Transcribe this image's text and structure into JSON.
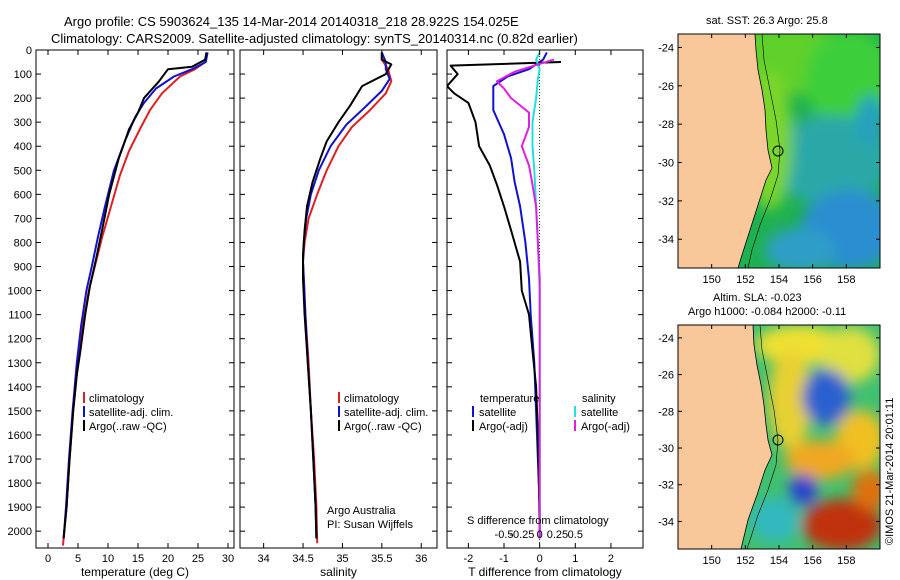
{
  "header": {
    "line1": "Argo profile: CS 5903624_135 14-Mar-2014 20140318_218 28.922S 154.025E",
    "line2": "Climatology: CARS2009. Satellite-adjusted climatology: synTS_20140314.nc (0.82d earlier)"
  },
  "colors": {
    "climatology": "#e02020",
    "satellite": "#1010d0",
    "argo": "#000000",
    "sat_salinity": "#20e0e0",
    "argo_salinity": "#e020e0",
    "land": "#f8c89a"
  },
  "chart_data": [
    {
      "type": "line",
      "name": "temperature-profile",
      "xlabel": "temperature (deg C)",
      "xlim": [
        -2,
        31
      ],
      "ylim": [
        0,
        2070
      ],
      "y_reversed": true,
      "xticks": [
        0,
        5,
        10,
        15,
        20,
        25,
        30
      ],
      "yticks": [
        0,
        100,
        200,
        300,
        400,
        500,
        600,
        700,
        800,
        900,
        1000,
        1100,
        1200,
        1300,
        1400,
        1500,
        1600,
        1700,
        1800,
        1900,
        2000
      ],
      "legend": [
        "climatology",
        "satellite-adj. clim.",
        "Argo(..raw -QC)"
      ],
      "series": [
        {
          "name": "climatology",
          "color": "#e02020",
          "points": [
            [
              26.5,
              10
            ],
            [
              26.2,
              50
            ],
            [
              24.5,
              80
            ],
            [
              22,
              110
            ],
            [
              19,
              180
            ],
            [
              17,
              250
            ],
            [
              15.5,
              320
            ],
            [
              13.5,
              420
            ],
            [
              12,
              520
            ],
            [
              10.5,
              650
            ],
            [
              9,
              780
            ],
            [
              7.8,
              900
            ],
            [
              6.8,
              1000
            ],
            [
              5.8,
              1150
            ],
            [
              5,
              1300
            ],
            [
              4.2,
              1500
            ],
            [
              3.6,
              1700
            ],
            [
              3.1,
              1900
            ],
            [
              2.6,
              2030
            ],
            [
              2.5,
              2060
            ]
          ]
        },
        {
          "name": "satellite-adj. clim.",
          "color": "#1010d0",
          "points": [
            [
              26.6,
              10
            ],
            [
              26.3,
              50
            ],
            [
              24,
              80
            ],
            [
              21,
              110
            ],
            [
              18,
              160
            ],
            [
              16,
              220
            ],
            [
              14.5,
              280
            ],
            [
              12.8,
              380
            ],
            [
              11,
              500
            ],
            [
              9.5,
              650
            ],
            [
              8.3,
              780
            ],
            [
              7.3,
              900
            ],
            [
              6.4,
              1000
            ],
            [
              5.5,
              1150
            ],
            [
              4.8,
              1300
            ],
            [
              4.1,
              1500
            ],
            [
              3.5,
              1700
            ],
            [
              3,
              1900
            ],
            [
              2.6,
              2030
            ]
          ]
        },
        {
          "name": "Argo(..raw -QC)",
          "color": "#000000",
          "points": [
            [
              26.4,
              10
            ],
            [
              26.2,
              40
            ],
            [
              24,
              70
            ],
            [
              20,
              80
            ],
            [
              18.5,
              130
            ],
            [
              16,
              200
            ],
            [
              15,
              260
            ],
            [
              13.5,
              330
            ],
            [
              11.8,
              450
            ],
            [
              10.2,
              600
            ],
            [
              9,
              750
            ],
            [
              8,
              870
            ],
            [
              7,
              980
            ],
            [
              6.2,
              1100
            ],
            [
              5.4,
              1250
            ],
            [
              4.8,
              1350
            ],
            [
              4.2,
              1500
            ],
            [
              3.6,
              1700
            ],
            [
              3.1,
              1900
            ],
            [
              2.6,
              2030
            ]
          ]
        }
      ]
    },
    {
      "type": "line",
      "name": "salinity-profile",
      "xlabel": "salinity",
      "xlim": [
        33.7,
        36.2
      ],
      "ylim": [
        0,
        2070
      ],
      "y_reversed": true,
      "xticks": [
        34,
        34.5,
        35,
        35.5,
        36
      ],
      "legend": [
        "climatology",
        "satellite-adj. clim.",
        "Argo(..raw -QC)"
      ],
      "annotation": [
        "Argo Australia",
        "PI: Susan Wijffels"
      ],
      "series": [
        {
          "name": "climatology",
          "color": "#e02020",
          "points": [
            [
              35.5,
              10
            ],
            [
              35.5,
              40
            ],
            [
              35.58,
              80
            ],
            [
              35.62,
              130
            ],
            [
              35.55,
              180
            ],
            [
              35.35,
              250
            ],
            [
              35.12,
              320
            ],
            [
              34.95,
              400
            ],
            [
              34.8,
              500
            ],
            [
              34.68,
              600
            ],
            [
              34.57,
              700
            ],
            [
              34.52,
              800
            ],
            [
              34.5,
              880
            ],
            [
              34.51,
              950
            ],
            [
              34.53,
              1100
            ],
            [
              34.57,
              1300
            ],
            [
              34.6,
              1500
            ],
            [
              34.64,
              1700
            ],
            [
              34.67,
              1900
            ],
            [
              34.68,
              2050
            ]
          ]
        },
        {
          "name": "satellite-adj. clim.",
          "color": "#1010d0",
          "points": [
            [
              35.5,
              10
            ],
            [
              35.55,
              50
            ],
            [
              35.55,
              80
            ],
            [
              35.6,
              120
            ],
            [
              35.5,
              170
            ],
            [
              35.28,
              240
            ],
            [
              35.05,
              310
            ],
            [
              34.85,
              400
            ],
            [
              34.7,
              500
            ],
            [
              34.6,
              600
            ],
            [
              34.54,
              700
            ],
            [
              34.51,
              800
            ],
            [
              34.5,
              880
            ],
            [
              34.51,
              950
            ],
            [
              34.53,
              1100
            ],
            [
              34.56,
              1300
            ],
            [
              34.6,
              1500
            ],
            [
              34.63,
              1700
            ],
            [
              34.66,
              1900
            ],
            [
              34.67,
              2030
            ]
          ]
        },
        {
          "name": "Argo(..raw -QC)",
          "color": "#000000",
          "points": [
            [
              35.5,
              10
            ],
            [
              35.5,
              40
            ],
            [
              35.62,
              60
            ],
            [
              35.55,
              100
            ],
            [
              35.25,
              150
            ],
            [
              35.1,
              230
            ],
            [
              34.95,
              300
            ],
            [
              34.8,
              380
            ],
            [
              34.72,
              450
            ],
            [
              34.62,
              550
            ],
            [
              34.55,
              650
            ],
            [
              34.52,
              750
            ],
            [
              34.5,
              850
            ],
            [
              34.5,
              950
            ],
            [
              34.52,
              1100
            ],
            [
              34.56,
              1300
            ],
            [
              34.6,
              1500
            ],
            [
              34.63,
              1700
            ],
            [
              34.66,
              1900
            ],
            [
              34.67,
              2030
            ]
          ]
        }
      ]
    },
    {
      "type": "line",
      "name": "difference-profile",
      "xlabel": "T difference from climatology",
      "xlabel_top": "S difference from climatology",
      "xlim": [
        -2.6,
        2.9
      ],
      "ylim": [
        0,
        2070
      ],
      "y_reversed": true,
      "xticks": [
        -2,
        -1,
        0,
        1,
        2
      ],
      "xticks_top": [
        -0.5,
        -0.25,
        0,
        0.25,
        0.5
      ],
      "xticks_top_labels": [
        "-0.5",
        "-0.25",
        "0",
        "0.25",
        "0.5"
      ],
      "legend": {
        "temperature": [
          "satellite",
          "Argo(-adj)"
        ],
        "salinity": [
          "satellite",
          "Argo(-adj)"
        ]
      },
      "legend_titles": [
        "temperature",
        "salinity"
      ],
      "series": [
        {
          "name": "temperature satellite",
          "color": "#1010d0",
          "points": [
            [
              0.2,
              10
            ],
            [
              0.1,
              40
            ],
            [
              -0.3,
              80
            ],
            [
              -0.9,
              110
            ],
            [
              -1.3,
              150
            ],
            [
              -1.3,
              250
            ],
            [
              -1.0,
              350
            ],
            [
              -0.8,
              450
            ],
            [
              -0.7,
              550
            ],
            [
              -0.55,
              650
            ],
            [
              -0.4,
              800
            ],
            [
              -0.3,
              950
            ],
            [
              -0.25,
              1100
            ],
            [
              -0.15,
              1300
            ],
            [
              -0.1,
              1500
            ],
            [
              -0.05,
              1700
            ],
            [
              0,
              1900
            ],
            [
              0,
              2030
            ]
          ]
        },
        {
          "name": "temperature Argo(-adj)",
          "color": "#000000",
          "points": [
            [
              0.6,
              50
            ],
            [
              -2.5,
              65
            ],
            [
              -2.3,
              100
            ],
            [
              -2.6,
              150
            ],
            [
              -2.4,
              180
            ],
            [
              -2.0,
              220
            ],
            [
              -1.8,
              300
            ],
            [
              -1.7,
              400
            ],
            [
              -1.4,
              480
            ],
            [
              -1.2,
              560
            ],
            [
              -1.0,
              650
            ],
            [
              -0.8,
              750
            ],
            [
              -0.55,
              880
            ],
            [
              -0.5,
              1000
            ],
            [
              -0.3,
              1100
            ],
            [
              -0.2,
              1250
            ],
            [
              -0.1,
              1400
            ],
            [
              -0.05,
              1600
            ],
            [
              -0.02,
              1800
            ],
            [
              0,
              2030
            ]
          ]
        },
        {
          "name": "salinity satellite",
          "color": "#20e0e0",
          "points": [
            [
              0,
              10
            ],
            [
              -0.1,
              40
            ],
            [
              0,
              80
            ],
            [
              -0.05,
              120
            ],
            [
              -0.1,
              200
            ],
            [
              -0.2,
              300
            ],
            [
              -0.2,
              400
            ],
            [
              -0.15,
              500
            ],
            [
              -0.1,
              650
            ],
            [
              -0.05,
              800
            ],
            [
              0,
              1000
            ],
            [
              0,
              1300
            ],
            [
              0,
              1700
            ],
            [
              0,
              2030
            ]
          ]
        },
        {
          "name": "salinity Argo(-adj)",
          "color": "#e020e0",
          "points": [
            [
              0.4,
              40
            ],
            [
              -0.7,
              90
            ],
            [
              -1.2,
              130
            ],
            [
              -1.0,
              160
            ],
            [
              -0.8,
              200
            ],
            [
              -0.3,
              260
            ],
            [
              -0.3,
              320
            ],
            [
              -0.5,
              400
            ],
            [
              -0.3,
              480
            ],
            [
              -0.2,
              560
            ],
            [
              -0.1,
              650
            ],
            [
              -0.05,
              800
            ],
            [
              0,
              950
            ],
            [
              0,
              1300
            ],
            [
              0,
              1700
            ],
            [
              0,
              2030
            ]
          ]
        }
      ]
    },
    {
      "type": "heatmap",
      "name": "sst-map",
      "title": "sat. SST: 26.3 Argo: 25.8",
      "xlim": [
        148,
        160
      ],
      "ylim": [
        -35.5,
        -23.3
      ],
      "xticks": [
        150,
        152,
        154,
        156,
        158
      ],
      "yticks": [
        -24,
        -26,
        -28,
        -30,
        -32,
        -34
      ],
      "xtick_labels": [
        "150",
        "152",
        "154",
        "156",
        "158"
      ],
      "ytick_labels": [
        "-24",
        "-26",
        "-28",
        "-30",
        "-32",
        "-34"
      ],
      "marker": {
        "lon": 154.025,
        "lat": -28.922
      }
    },
    {
      "type": "heatmap",
      "name": "sla-map",
      "title": "Altim. SLA: -0.023",
      "subtitle": "Argo h1000: -0.084 h2000: -0.11",
      "xlim": [
        148,
        160
      ],
      "ylim": [
        -35.5,
        -23.3
      ],
      "xticks": [
        150,
        152,
        154,
        156,
        158
      ],
      "yticks": [
        -24,
        -26,
        -28,
        -30,
        -32,
        -34
      ],
      "xtick_labels": [
        "150",
        "152",
        "154",
        "156",
        "158"
      ],
      "ytick_labels": [
        "-24",
        "-26",
        "-28",
        "-30",
        "-32",
        "-34"
      ],
      "marker": {
        "lon": 154.025,
        "lat": -28.922
      }
    }
  ],
  "watermark": "©IMOS 21-Mar-2014 20:01:11"
}
